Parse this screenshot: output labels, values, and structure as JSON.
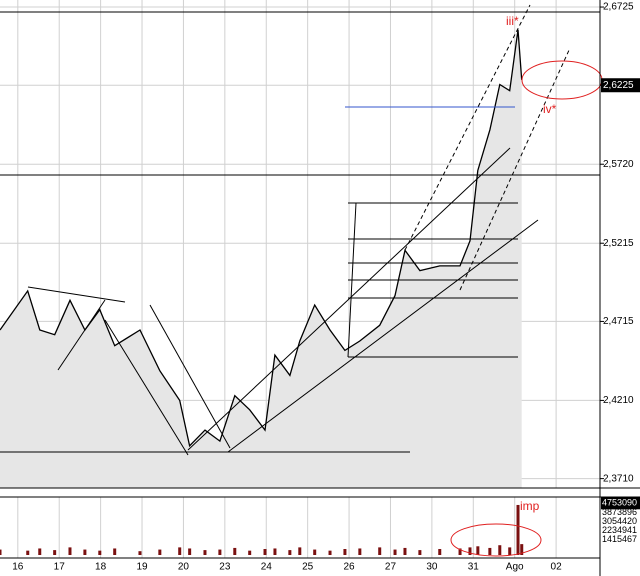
{
  "chart_data": {
    "type": "line",
    "xlim": [
      -0.43,
      14.06
    ],
    "xticks": [
      {
        "value": 0,
        "label": "16"
      },
      {
        "value": 1,
        "label": "17"
      },
      {
        "value": 2,
        "label": "18"
      },
      {
        "value": 3,
        "label": "19"
      },
      {
        "value": 4,
        "label": "20"
      },
      {
        "value": 5,
        "label": "23"
      },
      {
        "value": 6,
        "label": "24"
      },
      {
        "value": 7,
        "label": "25"
      },
      {
        "value": 8,
        "label": "26"
      },
      {
        "value": 9,
        "label": "27"
      },
      {
        "value": 10,
        "label": "30"
      },
      {
        "value": 11,
        "label": "31"
      },
      {
        "value": 12,
        "label": "Ago"
      },
      {
        "value": 13,
        "label": "02"
      }
    ],
    "ylim": [
      2.365,
      2.677
    ],
    "yticks": [
      {
        "value": 2.6725,
        "label": "2,6725"
      },
      {
        "value": 2.6225,
        "label": "2,6225"
      },
      {
        "value": 2.572,
        "label": "2,5720"
      },
      {
        "value": 2.5215,
        "label": "2,5215"
      },
      {
        "value": 2.4715,
        "label": "2,4715"
      },
      {
        "value": 2.421,
        "label": "2,4210"
      },
      {
        "value": 2.371,
        "label": "2,3710"
      }
    ],
    "grid": true,
    "area": true,
    "series": [
      {
        "color": "#000000",
        "x": [
          -0.43,
          0.24,
          0.53,
          0.89,
          1.26,
          1.62,
          1.98,
          2.34,
          2.95,
          3.43,
          3.91,
          4.15,
          4.52,
          4.88,
          5.24,
          5.6,
          5.97,
          6.21,
          6.57,
          6.81,
          7.17,
          7.54,
          7.9,
          8.26,
          8.74,
          9.11,
          9.35,
          9.71,
          10.19,
          10.68,
          10.92,
          11.11,
          11.4,
          11.64,
          11.88,
          12.08,
          12.17
        ],
        "values": [
          2.466,
          2.491,
          2.466,
          2.463,
          2.485,
          2.466,
          2.479,
          2.456,
          2.466,
          2.44,
          2.421,
          2.392,
          2.402,
          2.395,
          2.424,
          2.415,
          2.402,
          2.45,
          2.437,
          2.459,
          2.482,
          2.466,
          2.453,
          2.459,
          2.469,
          2.488,
          2.517,
          2.504,
          2.507,
          2.507,
          2.523,
          2.568,
          2.594,
          2.623,
          2.619,
          2.658,
          2.626
        ]
      }
    ],
    "volume": {
      "color": "#7a1010",
      "vlim": [
        0,
        5240000
      ],
      "vticks": [
        3873896,
        3054420,
        2234941,
        1415467,
        4753090
      ],
      "values": [
        500000,
        400000,
        600000,
        450000,
        700000,
        500000,
        400000,
        600000,
        350000,
        500000,
        700000,
        600000,
        450000,
        500000,
        650000,
        400000,
        550000,
        600000,
        450000,
        700000,
        500000,
        400000,
        550000,
        600000,
        700000,
        500000,
        650000,
        450000,
        550000,
        600000,
        700000,
        800000,
        650000,
        900000,
        700000,
        4600000,
        1000000
      ]
    },
    "annotations": [
      "iii*",
      "iv*",
      "imp"
    ]
  }
}
